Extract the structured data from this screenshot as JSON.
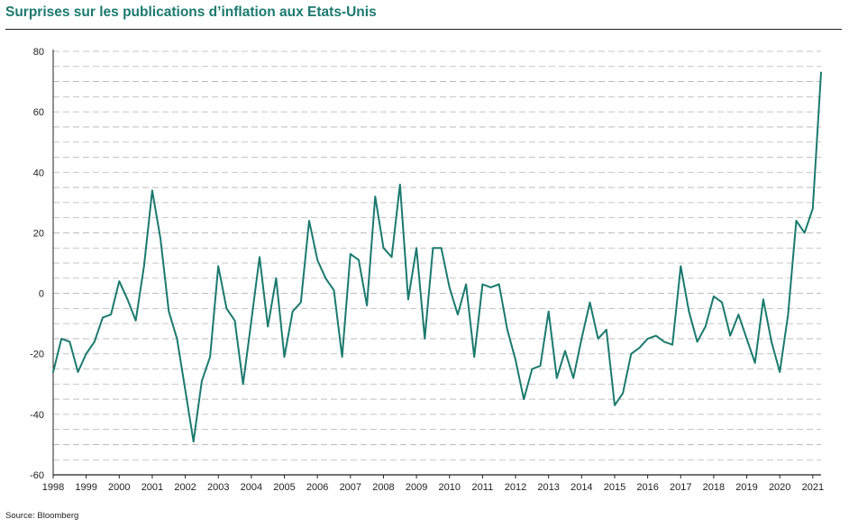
{
  "chart_data": {
    "type": "line",
    "title": "Surprises sur les publications d’inflation aux Etats-Unis",
    "source": "Source: Bloomberg",
    "xlabel": "",
    "ylabel": "",
    "ylim": [
      -60,
      80
    ],
    "xlim": [
      1998,
      2021.25
    ],
    "y_ticks": [
      "80",
      "60",
      "40",
      "20",
      "0",
      "-20",
      "-40",
      "-60"
    ],
    "x_ticks": [
      "1998",
      "1999",
      "2000",
      "2001",
      "2002",
      "2003",
      "2004",
      "2005",
      "2006",
      "2007",
      "2008",
      "2009",
      "2010",
      "2011",
      "2012",
      "2013",
      "2014",
      "2015",
      "2016",
      "2017",
      "2018",
      "2019",
      "2020",
      "2021"
    ],
    "grid": true,
    "colors": {
      "line": "#1a7a6e",
      "title": "#1a7a6e",
      "grid": "#b3b3b3",
      "axis": "#222222"
    },
    "series": [
      {
        "x": [
          1998.0,
          1998.25,
          1998.5,
          1998.75,
          1999.0,
          1999.25,
          1999.5,
          1999.75,
          2000.0,
          2000.25,
          2000.5,
          2000.75,
          2001.0,
          2001.25,
          2001.5,
          2001.75,
          2002.0,
          2002.25,
          2002.5,
          2002.75,
          2003.0,
          2003.25,
          2003.5,
          2003.75,
          2004.0,
          2004.25,
          2004.5,
          2004.75,
          2005.0,
          2005.25,
          2005.5,
          2005.75,
          2006.0,
          2006.25,
          2006.5,
          2006.75,
          2007.0,
          2007.25,
          2007.5,
          2007.75,
          2008.0,
          2008.25,
          2008.5,
          2008.75,
          2009.0,
          2009.25,
          2009.5,
          2009.75,
          2010.0,
          2010.25,
          2010.5,
          2010.75,
          2011.0,
          2011.25,
          2011.5,
          2011.75,
          2012.0,
          2012.25,
          2012.5,
          2012.75,
          2013.0,
          2013.25,
          2013.5,
          2013.75,
          2014.0,
          2014.25,
          2014.5,
          2014.75,
          2015.0,
          2015.25,
          2015.5,
          2015.75,
          2016.0,
          2016.25,
          2016.5,
          2016.75,
          2017.0,
          2017.25,
          2017.5,
          2017.75,
          2018.0,
          2018.25,
          2018.5,
          2018.75,
          2019.0,
          2019.25,
          2019.5,
          2019.75,
          2020.0,
          2020.25,
          2020.5,
          2020.75,
          2021.0,
          2021.25
        ],
        "values": [
          -26,
          -15,
          -16,
          -26,
          -20,
          -16,
          -8,
          -7,
          4,
          -2,
          -9,
          9,
          34,
          18,
          -6,
          -15,
          -32,
          -49,
          -29,
          -21,
          9,
          -5,
          -9,
          -30,
          -9,
          12,
          -11,
          5,
          -21,
          -6,
          -3,
          24,
          11,
          5,
          1,
          -21,
          13,
          11,
          -4,
          32,
          15,
          12,
          36,
          -2,
          15,
          -15,
          15,
          15,
          2,
          -7,
          3,
          -21,
          3,
          2,
          3,
          -12,
          -22,
          -35,
          -25,
          -24,
          -6,
          -28,
          -19,
          -28,
          -15,
          -3,
          -15,
          -12,
          -37,
          -33,
          -20,
          -18,
          -15,
          -14,
          -16,
          -17,
          9,
          -6,
          -16,
          -11,
          -1,
          -3,
          -14,
          -7,
          -15,
          -23,
          -2,
          -16,
          -26,
          -7,
          24,
          20,
          28,
          73
        ]
      }
    ]
  }
}
